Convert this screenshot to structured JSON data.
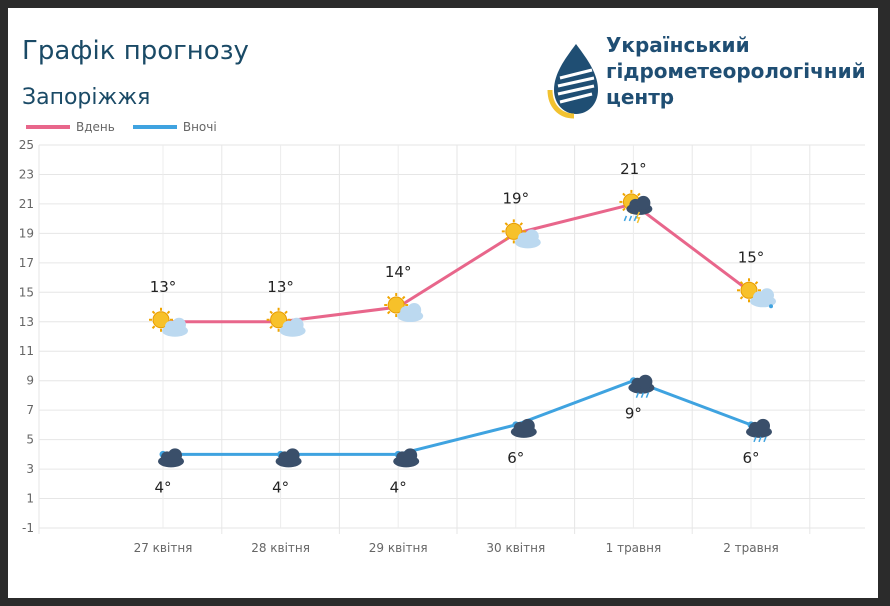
{
  "organization": {
    "line1": "Український",
    "line2": "гідрометеорологічний",
    "line3": "центр"
  },
  "chart_data": {
    "type": "line",
    "title": "Графік прогнозу",
    "subtitle": "Запоріжжя",
    "categories": [
      "27 квітня",
      "28 квітня",
      "29 квітня",
      "30 квітня",
      "1 травня",
      "2 травня"
    ],
    "series": [
      {
        "name": "Вдень",
        "color": "#e8668b",
        "values": [
          13,
          13,
          14,
          19,
          21,
          15
        ],
        "labels": [
          "13°",
          "13°",
          "14°",
          "19°",
          "21°",
          "15°"
        ],
        "icons": [
          "sun-cloud-icon",
          "sun-cloud-icon",
          "sun-cloud-icon",
          "sun-cloud-icon",
          "thunderstorm-rain-icon",
          "sun-cloud-rain-icon"
        ]
      },
      {
        "name": "Вночі",
        "color": "#3fa3e0",
        "values": [
          4,
          4,
          4,
          6,
          9,
          6
        ],
        "labels": [
          "4°",
          "4°",
          "4°",
          "6°",
          "9°",
          "6°"
        ],
        "icons": [
          "moon-cloud-icon",
          "moon-cloud-icon",
          "moon-cloud-icon",
          "moon-cloud-icon",
          "moon-cloud-rain-icon",
          "moon-cloud-rain-icon"
        ]
      }
    ],
    "yticks": [
      "25",
      "23",
      "21",
      "19",
      "17",
      "15",
      "13",
      "11",
      "9",
      "7",
      "5",
      "3",
      "1",
      "-1"
    ],
    "ylim": [
      -1,
      25
    ],
    "grid": true,
    "legend": "top-left"
  }
}
